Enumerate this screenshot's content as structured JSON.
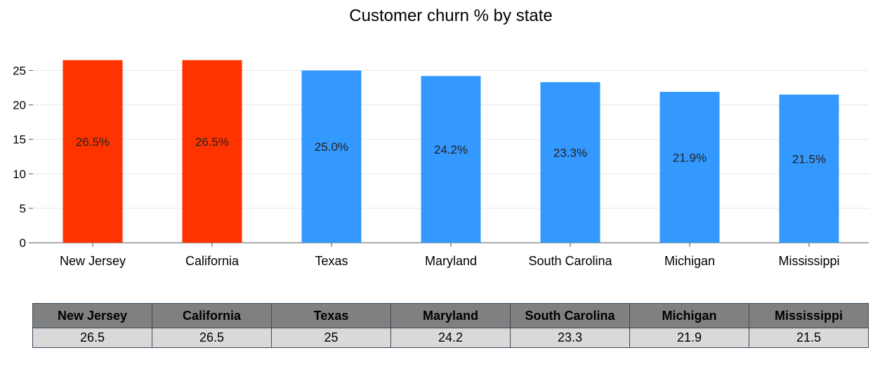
{
  "chart_data": {
    "type": "bar",
    "title": "Customer churn % by state",
    "categories": [
      "New Jersey",
      "California",
      "Texas",
      "Maryland",
      "South Carolina",
      "Michigan",
      "Mississippi"
    ],
    "values": [
      26.5,
      26.5,
      25.0,
      24.2,
      23.3,
      21.9,
      21.5
    ],
    "data_labels": [
      "26.5%",
      "26.5%",
      "25.0%",
      "24.2%",
      "23.3%",
      "21.9%",
      "21.5%"
    ],
    "ylim": [
      0,
      27
    ],
    "yticks": [
      0,
      5,
      10,
      15,
      20,
      25
    ],
    "grid": true,
    "highlight_color": "#ff3300",
    "bar_color": "#3399ff",
    "bar_colors": [
      "#ff3300",
      "#ff3300",
      "#3399ff",
      "#3399ff",
      "#3399ff",
      "#3399ff",
      "#3399ff"
    ],
    "xlabel": "",
    "ylabel": ""
  },
  "table": {
    "headers": [
      "New Jersey",
      "California",
      "Texas",
      "Maryland",
      "South Carolina",
      "Michigan",
      "Mississippi"
    ],
    "values": [
      "26.5",
      "26.5",
      "25",
      "24.2",
      "23.3",
      "21.9",
      "21.5"
    ]
  }
}
